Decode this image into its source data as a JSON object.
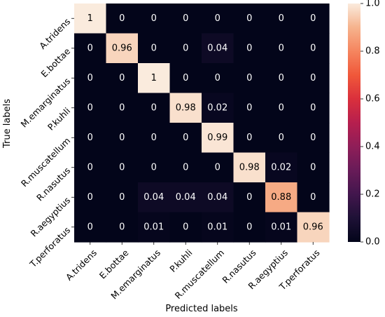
{
  "chart_data": {
    "type": "heatmap",
    "title": "",
    "xlabel": "Predicted labels",
    "ylabel": "True labels",
    "x_categories": [
      "A.tridens",
      "E.bottae",
      "M.emarginatus",
      "P.kuhli",
      "R.muscatellum",
      "R.nasutus",
      "R.aegyptius",
      "T.perforatus"
    ],
    "y_categories": [
      "A.tridens",
      "E.bottae",
      "M.emarginatus",
      "P.kuhli",
      "R.muscatellum",
      "R.nasutus",
      "R.aegyptius",
      "T.perforatus"
    ],
    "values": [
      [
        1,
        0,
        0,
        0,
        0,
        0,
        0,
        0
      ],
      [
        0,
        0.96,
        0,
        0,
        0.04,
        0,
        0,
        0
      ],
      [
        0,
        0,
        1,
        0,
        0,
        0,
        0,
        0
      ],
      [
        0,
        0,
        0,
        0.98,
        0.02,
        0,
        0,
        0
      ],
      [
        0,
        0,
        0,
        0,
        0.99,
        0,
        0,
        0
      ],
      [
        0,
        0,
        0,
        0,
        0,
        0.98,
        0.02,
        0
      ],
      [
        0,
        0,
        0.04,
        0.04,
        0.04,
        0,
        0.88,
        0
      ],
      [
        0,
        0,
        0.01,
        0,
        0.01,
        0,
        0.01,
        0.96
      ]
    ],
    "value_labels": [
      [
        "1",
        "0",
        "0",
        "0",
        "0",
        "0",
        "0",
        "0"
      ],
      [
        "0",
        "0.96",
        "0",
        "0",
        "0.04",
        "0",
        "0",
        "0"
      ],
      [
        "0",
        "0",
        "1",
        "0",
        "0",
        "0",
        "0",
        "0"
      ],
      [
        "0",
        "0",
        "0",
        "0.98",
        "0.02",
        "0",
        "0",
        "0"
      ],
      [
        "0",
        "0",
        "0",
        "0",
        "0.99",
        "0",
        "0",
        "0"
      ],
      [
        "0",
        "0",
        "0",
        "0",
        "0",
        "0.98",
        "0.02",
        "0"
      ],
      [
        "0",
        "0",
        "0.04",
        "0.04",
        "0.04",
        "0",
        "0.88",
        "0"
      ],
      [
        "0",
        "0",
        "0.01",
        "0",
        "0.01",
        "0",
        "0.01",
        "0.96"
      ]
    ],
    "colorbar": {
      "range": [
        0.0,
        1.0
      ],
      "ticks": [
        0.0,
        0.2,
        0.4,
        0.6,
        0.8,
        1.0
      ],
      "tick_labels": [
        "0.0",
        "0.2",
        "0.4",
        "0.6",
        "0.8",
        "1.0"
      ],
      "colormap": "rocket"
    }
  }
}
